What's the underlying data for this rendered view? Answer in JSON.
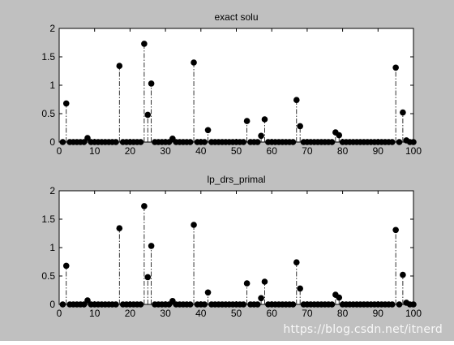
{
  "colors": {
    "figure_background": "#c0c0c0",
    "axes_background": "#ffffff",
    "ink": "#000000"
  },
  "watermark": "https://blog.csdn.net/itnerd",
  "chart_data": [
    {
      "type": "stem",
      "title": "exact solu",
      "xlim": [
        0,
        100
      ],
      "ylim": [
        0,
        2
      ],
      "xticks": [
        0,
        10,
        20,
        30,
        40,
        50,
        60,
        70,
        80,
        90,
        100
      ],
      "yticks": [
        0,
        0.5,
        1,
        1.5,
        2
      ],
      "ytick_labels": [
        "0",
        "0.5",
        "1",
        "1.5",
        "2"
      ],
      "marker": "filled-circle",
      "line_style": "dash-dot",
      "grid": false,
      "nonzero": [
        {
          "x": 2,
          "y": 0.68
        },
        {
          "x": 8,
          "y": 0.07
        },
        {
          "x": 17,
          "y": 1.34
        },
        {
          "x": 24,
          "y": 1.73
        },
        {
          "x": 25,
          "y": 0.48
        },
        {
          "x": 26,
          "y": 1.03
        },
        {
          "x": 32,
          "y": 0.06
        },
        {
          "x": 38,
          "y": 1.4
        },
        {
          "x": 42,
          "y": 0.21
        },
        {
          "x": 53,
          "y": 0.37
        },
        {
          "x": 57,
          "y": 0.11
        },
        {
          "x": 58,
          "y": 0.4
        },
        {
          "x": 67,
          "y": 0.74
        },
        {
          "x": 68,
          "y": 0.28
        },
        {
          "x": 78,
          "y": 0.17
        },
        {
          "x": 79,
          "y": 0.12
        },
        {
          "x": 95,
          "y": 1.31
        },
        {
          "x": 97,
          "y": 0.52
        },
        {
          "x": 98,
          "y": 0.03
        }
      ]
    },
    {
      "type": "stem",
      "title": "lp_drs_primal",
      "xlim": [
        0,
        100
      ],
      "ylim": [
        0,
        2
      ],
      "xticks": [
        0,
        10,
        20,
        30,
        40,
        50,
        60,
        70,
        80,
        90,
        100
      ],
      "yticks": [
        0,
        0.5,
        1,
        1.5,
        2
      ],
      "ytick_labels": [
        "0",
        "0.5",
        "1",
        "1.5",
        "2"
      ],
      "marker": "filled-circle",
      "line_style": "dash-dot",
      "grid": false,
      "nonzero": [
        {
          "x": 2,
          "y": 0.68
        },
        {
          "x": 8,
          "y": 0.07
        },
        {
          "x": 17,
          "y": 1.34
        },
        {
          "x": 24,
          "y": 1.73
        },
        {
          "x": 25,
          "y": 0.48
        },
        {
          "x": 26,
          "y": 1.03
        },
        {
          "x": 32,
          "y": 0.06
        },
        {
          "x": 38,
          "y": 1.4
        },
        {
          "x": 42,
          "y": 0.21
        },
        {
          "x": 53,
          "y": 0.37
        },
        {
          "x": 57,
          "y": 0.11
        },
        {
          "x": 58,
          "y": 0.4
        },
        {
          "x": 67,
          "y": 0.74
        },
        {
          "x": 68,
          "y": 0.28
        },
        {
          "x": 78,
          "y": 0.17
        },
        {
          "x": 79,
          "y": 0.12
        },
        {
          "x": 95,
          "y": 1.31
        },
        {
          "x": 97,
          "y": 0.52
        },
        {
          "x": 98,
          "y": 0.03
        }
      ]
    }
  ]
}
